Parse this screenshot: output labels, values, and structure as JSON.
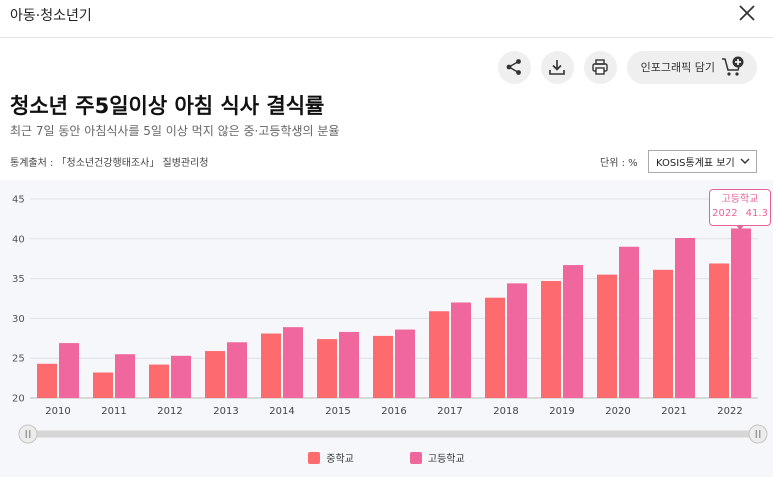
{
  "window": {
    "title": "아동·청소년기"
  },
  "toolbar": {
    "infographic_label": "인포그래픽 담기"
  },
  "heading": "청소년 주5일이상 아침 식사 결식률",
  "subheading": "최근 7일 동안 아침식사를 5일 이상 먹지 않은 중·고등학생의 분율",
  "source": "통계출처 : 「청소년건강행태조사」 질병관리청",
  "unit": "단위 : %",
  "kosis_button": "KOSIS통계표 보기",
  "icons": {
    "close": "close-icon",
    "share": "share-icon",
    "download": "download-icon",
    "print": "print-icon",
    "cart": "cart-plus-icon",
    "dropdown": "chevron-down-icon",
    "slider_handle": "slider-handle-icon"
  },
  "tooltip": {
    "series": "고등학교",
    "year": "2022",
    "value": "41.3"
  },
  "colors": {
    "middle": "#fe6b6f",
    "high": "#f0679d",
    "accent": "#e8629a"
  },
  "chart_data": {
    "type": "bar",
    "categories": [
      "2010",
      "2011",
      "2012",
      "2013",
      "2014",
      "2015",
      "2016",
      "2017",
      "2018",
      "2019",
      "2020",
      "2021",
      "2022"
    ],
    "series": [
      {
        "name": "중학교",
        "values": [
          24.3,
          23.2,
          24.2,
          25.9,
          28.1,
          27.4,
          27.8,
          30.9,
          32.6,
          34.7,
          35.5,
          36.1,
          36.9
        ]
      },
      {
        "name": "고등학교",
        "values": [
          26.9,
          25.5,
          25.3,
          27.0,
          28.9,
          28.3,
          28.6,
          32.0,
          34.4,
          36.7,
          39.0,
          40.1,
          41.3
        ]
      }
    ],
    "ylim": [
      20,
      45
    ],
    "yticks": [
      20,
      25,
      30,
      35,
      40,
      45
    ],
    "grid": true,
    "legend_position": "bottom-center"
  }
}
